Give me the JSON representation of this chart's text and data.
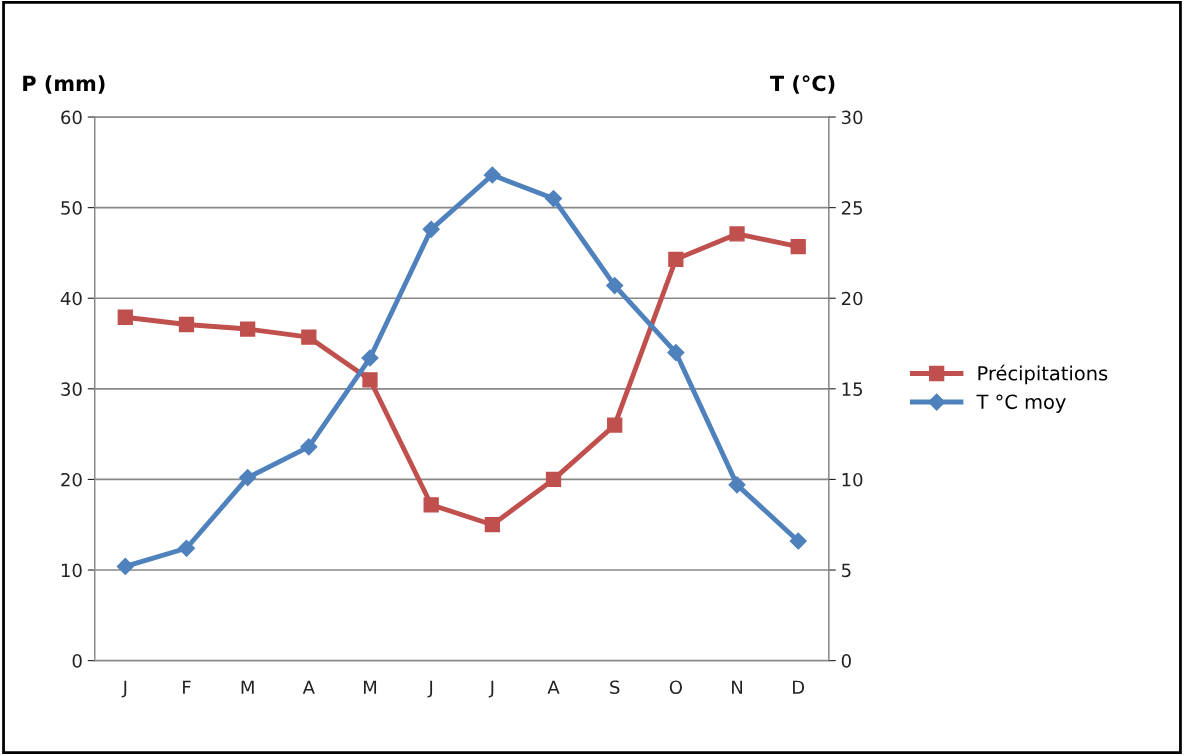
{
  "chart_data": {
    "type": "line",
    "ylabel": "P (mm)",
    "y2label": "T (°C)",
    "categories": [
      "J",
      "F",
      "M",
      "A",
      "M",
      "J",
      "J",
      "A",
      "S",
      "O",
      "N",
      "D"
    ],
    "series": [
      {
        "name": "Précipitations",
        "color": "#c0504d",
        "marker": "square",
        "values": [
          37.9,
          37.1,
          36.6,
          35.7,
          31.0,
          17.2,
          15.0,
          20.0,
          26.0,
          44.3,
          47.1,
          45.7
        ]
      },
      {
        "name": "T °C moy",
        "color": "#4f81bd",
        "marker": "diamond",
        "axis": "y2",
        "values": [
          5.2,
          6.2,
          10.1,
          11.8,
          16.7,
          23.8,
          26.8,
          25.5,
          20.7,
          17.0,
          9.7,
          6.6
        ]
      }
    ],
    "ylim": [
      0,
      60
    ],
    "yticks": [
      0,
      10,
      20,
      30,
      40,
      50,
      60
    ],
    "y2lim": [
      0,
      30
    ],
    "y2ticks": [
      0,
      5,
      10,
      15,
      20,
      25,
      30
    ],
    "grid": "y",
    "legend": "right",
    "line_style": "solid"
  }
}
